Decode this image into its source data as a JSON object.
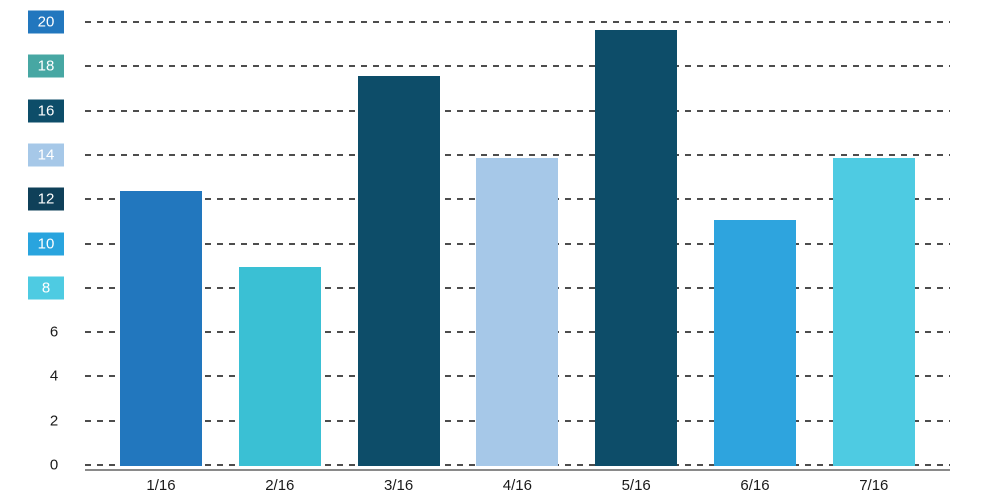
{
  "chart_data": {
    "type": "bar",
    "title": "",
    "xlabel": "",
    "ylabel": "",
    "categories": [
      "1/16",
      "2/16",
      "3/16",
      "4/16",
      "5/16",
      "6/16",
      "7/16"
    ],
    "values": [
      12.4,
      9.0,
      17.6,
      13.9,
      19.7,
      11.1,
      13.9
    ],
    "bar_colors": [
      "#2277be",
      "#3ac0d4",
      "#0d4d69",
      "#a6c8e8",
      "#0d4d69",
      "#2ea4de",
      "#4ecbe2"
    ],
    "ylim": [
      0,
      20
    ],
    "ytick_step": 2,
    "grid": "horizontal dashed",
    "legend": "none",
    "yticks": [
      {
        "value": 20,
        "box_color": "#2277be"
      },
      {
        "value": 18,
        "box_color": "#47a7a3"
      },
      {
        "value": 16,
        "box_color": "#0d4d69"
      },
      {
        "value": 14,
        "box_color": "#a6c8e8"
      },
      {
        "value": 12,
        "box_color": "#0f4059"
      },
      {
        "value": 10,
        "box_color": "#29a4de"
      },
      {
        "value": 8,
        "box_color": "#4ecbe2"
      },
      {
        "value": 6,
        "box_color": null
      },
      {
        "value": 4,
        "box_color": null
      },
      {
        "value": 2,
        "box_color": null
      },
      {
        "value": 0,
        "box_color": null
      }
    ],
    "gridline_color": "#4d4d4d",
    "axis_color": "#8a8a8a",
    "tick_text_color": "#1a1a1a"
  }
}
